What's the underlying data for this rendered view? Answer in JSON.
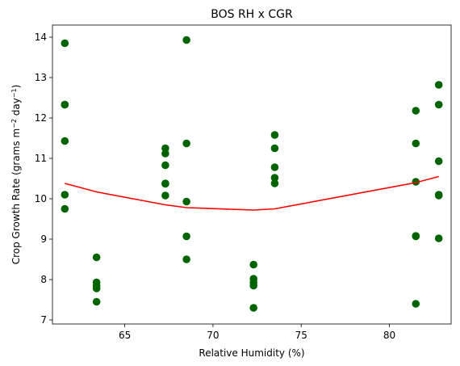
{
  "chart_data": {
    "type": "scatter",
    "title": "BOS RH x CGR",
    "xlabel": "Relative Humidity (%)",
    "ylabel": {
      "text": "Crop Growth Rate (grams m",
      "sup1": "−2",
      "mid": " day",
      "sup2": "−1",
      "end": ")"
    },
    "xlim": [
      60.9,
      83.5
    ],
    "ylim": [
      6.9,
      14.3
    ],
    "xticks": [
      65,
      70,
      75,
      80
    ],
    "yticks": [
      7,
      8,
      9,
      10,
      11,
      12,
      13,
      14
    ],
    "grid": false,
    "scatter": {
      "color": "#006400",
      "points": [
        [
          61.6,
          13.85
        ],
        [
          61.6,
          12.33
        ],
        [
          61.6,
          12.33
        ],
        [
          61.6,
          11.43
        ],
        [
          61.6,
          10.1
        ],
        [
          61.6,
          9.75
        ],
        [
          63.4,
          8.55
        ],
        [
          63.4,
          7.93
        ],
        [
          63.4,
          7.85
        ],
        [
          63.4,
          7.78
        ],
        [
          63.4,
          7.45
        ],
        [
          67.3,
          11.25
        ],
        [
          67.3,
          11.12
        ],
        [
          67.3,
          10.83
        ],
        [
          67.3,
          10.38
        ],
        [
          67.3,
          10.37
        ],
        [
          67.3,
          10.08
        ],
        [
          68.5,
          13.93
        ],
        [
          68.5,
          11.37
        ],
        [
          68.5,
          9.93
        ],
        [
          68.5,
          9.07
        ],
        [
          68.5,
          8.5
        ],
        [
          72.3,
          8.37
        ],
        [
          72.3,
          8.02
        ],
        [
          72.3,
          7.93
        ],
        [
          72.3,
          7.85
        ],
        [
          72.3,
          7.3
        ],
        [
          73.5,
          11.58
        ],
        [
          73.5,
          11.25
        ],
        [
          73.5,
          10.78
        ],
        [
          73.5,
          10.52
        ],
        [
          73.5,
          10.38
        ],
        [
          81.5,
          12.18
        ],
        [
          81.5,
          11.37
        ],
        [
          81.5,
          10.42
        ],
        [
          81.5,
          9.08
        ],
        [
          81.5,
          9.07
        ],
        [
          81.5,
          7.4
        ],
        [
          82.8,
          12.82
        ],
        [
          82.8,
          12.33
        ],
        [
          82.8,
          10.93
        ],
        [
          82.8,
          10.1
        ],
        [
          82.8,
          10.08
        ],
        [
          82.8,
          9.02
        ]
      ]
    },
    "line": {
      "color": "#ff0000",
      "x": [
        61.6,
        63.4,
        67.3,
        68.5,
        72.3,
        73.5,
        81.5,
        82.8
      ],
      "y": [
        10.38,
        10.17,
        9.85,
        9.78,
        9.72,
        9.75,
        10.4,
        10.55
      ]
    }
  }
}
